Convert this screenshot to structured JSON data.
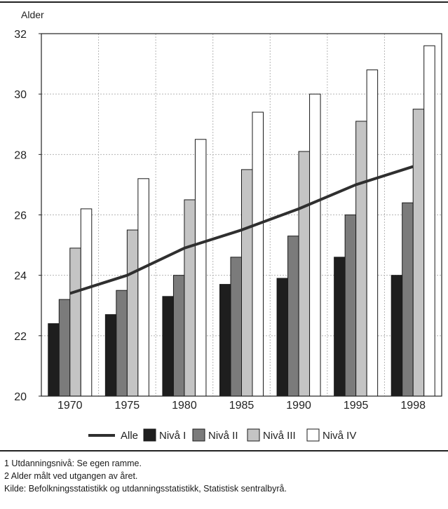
{
  "chart_data": {
    "type": "bar",
    "ylabel": "Alder",
    "ylim": [
      20,
      32
    ],
    "yticks": [
      20,
      22,
      24,
      26,
      28,
      30,
      32
    ],
    "categories": [
      "1970",
      "1975",
      "1980",
      "1985",
      "1990",
      "1995",
      "1998"
    ],
    "series": [
      {
        "name": "Nivå I",
        "type": "bar",
        "color": "#1e1e1e",
        "values": [
          22.4,
          22.7,
          23.3,
          23.7,
          23.9,
          24.6,
          24.0
        ]
      },
      {
        "name": "Nivå II",
        "type": "bar",
        "color": "#7b7b7b",
        "values": [
          23.2,
          23.5,
          24.0,
          24.6,
          25.3,
          26.0,
          26.4
        ]
      },
      {
        "name": "Nivå III",
        "type": "bar",
        "color": "#c4c4c4",
        "values": [
          24.9,
          25.5,
          26.5,
          27.5,
          28.1,
          29.1,
          29.5
        ]
      },
      {
        "name": "Nivå IV",
        "type": "bar",
        "color": "#ffffff",
        "values": [
          26.2,
          27.2,
          28.5,
          29.4,
          30.0,
          30.8,
          31.6
        ]
      },
      {
        "name": "Alle",
        "type": "line",
        "color": "#2f2f2f",
        "values": [
          23.4,
          24.0,
          24.9,
          25.5,
          26.2,
          27.0,
          27.6
        ]
      }
    ],
    "grid": true,
    "legend_position": "bottom"
  },
  "notes": [
    "1 Utdanningsnivå: Se egen ramme.",
    "2 Alder målt ved utgangen av året.",
    "Kilde: Befolkningsstatistikk og utdanningsstatistikk, Statistisk sentralbyrå."
  ]
}
